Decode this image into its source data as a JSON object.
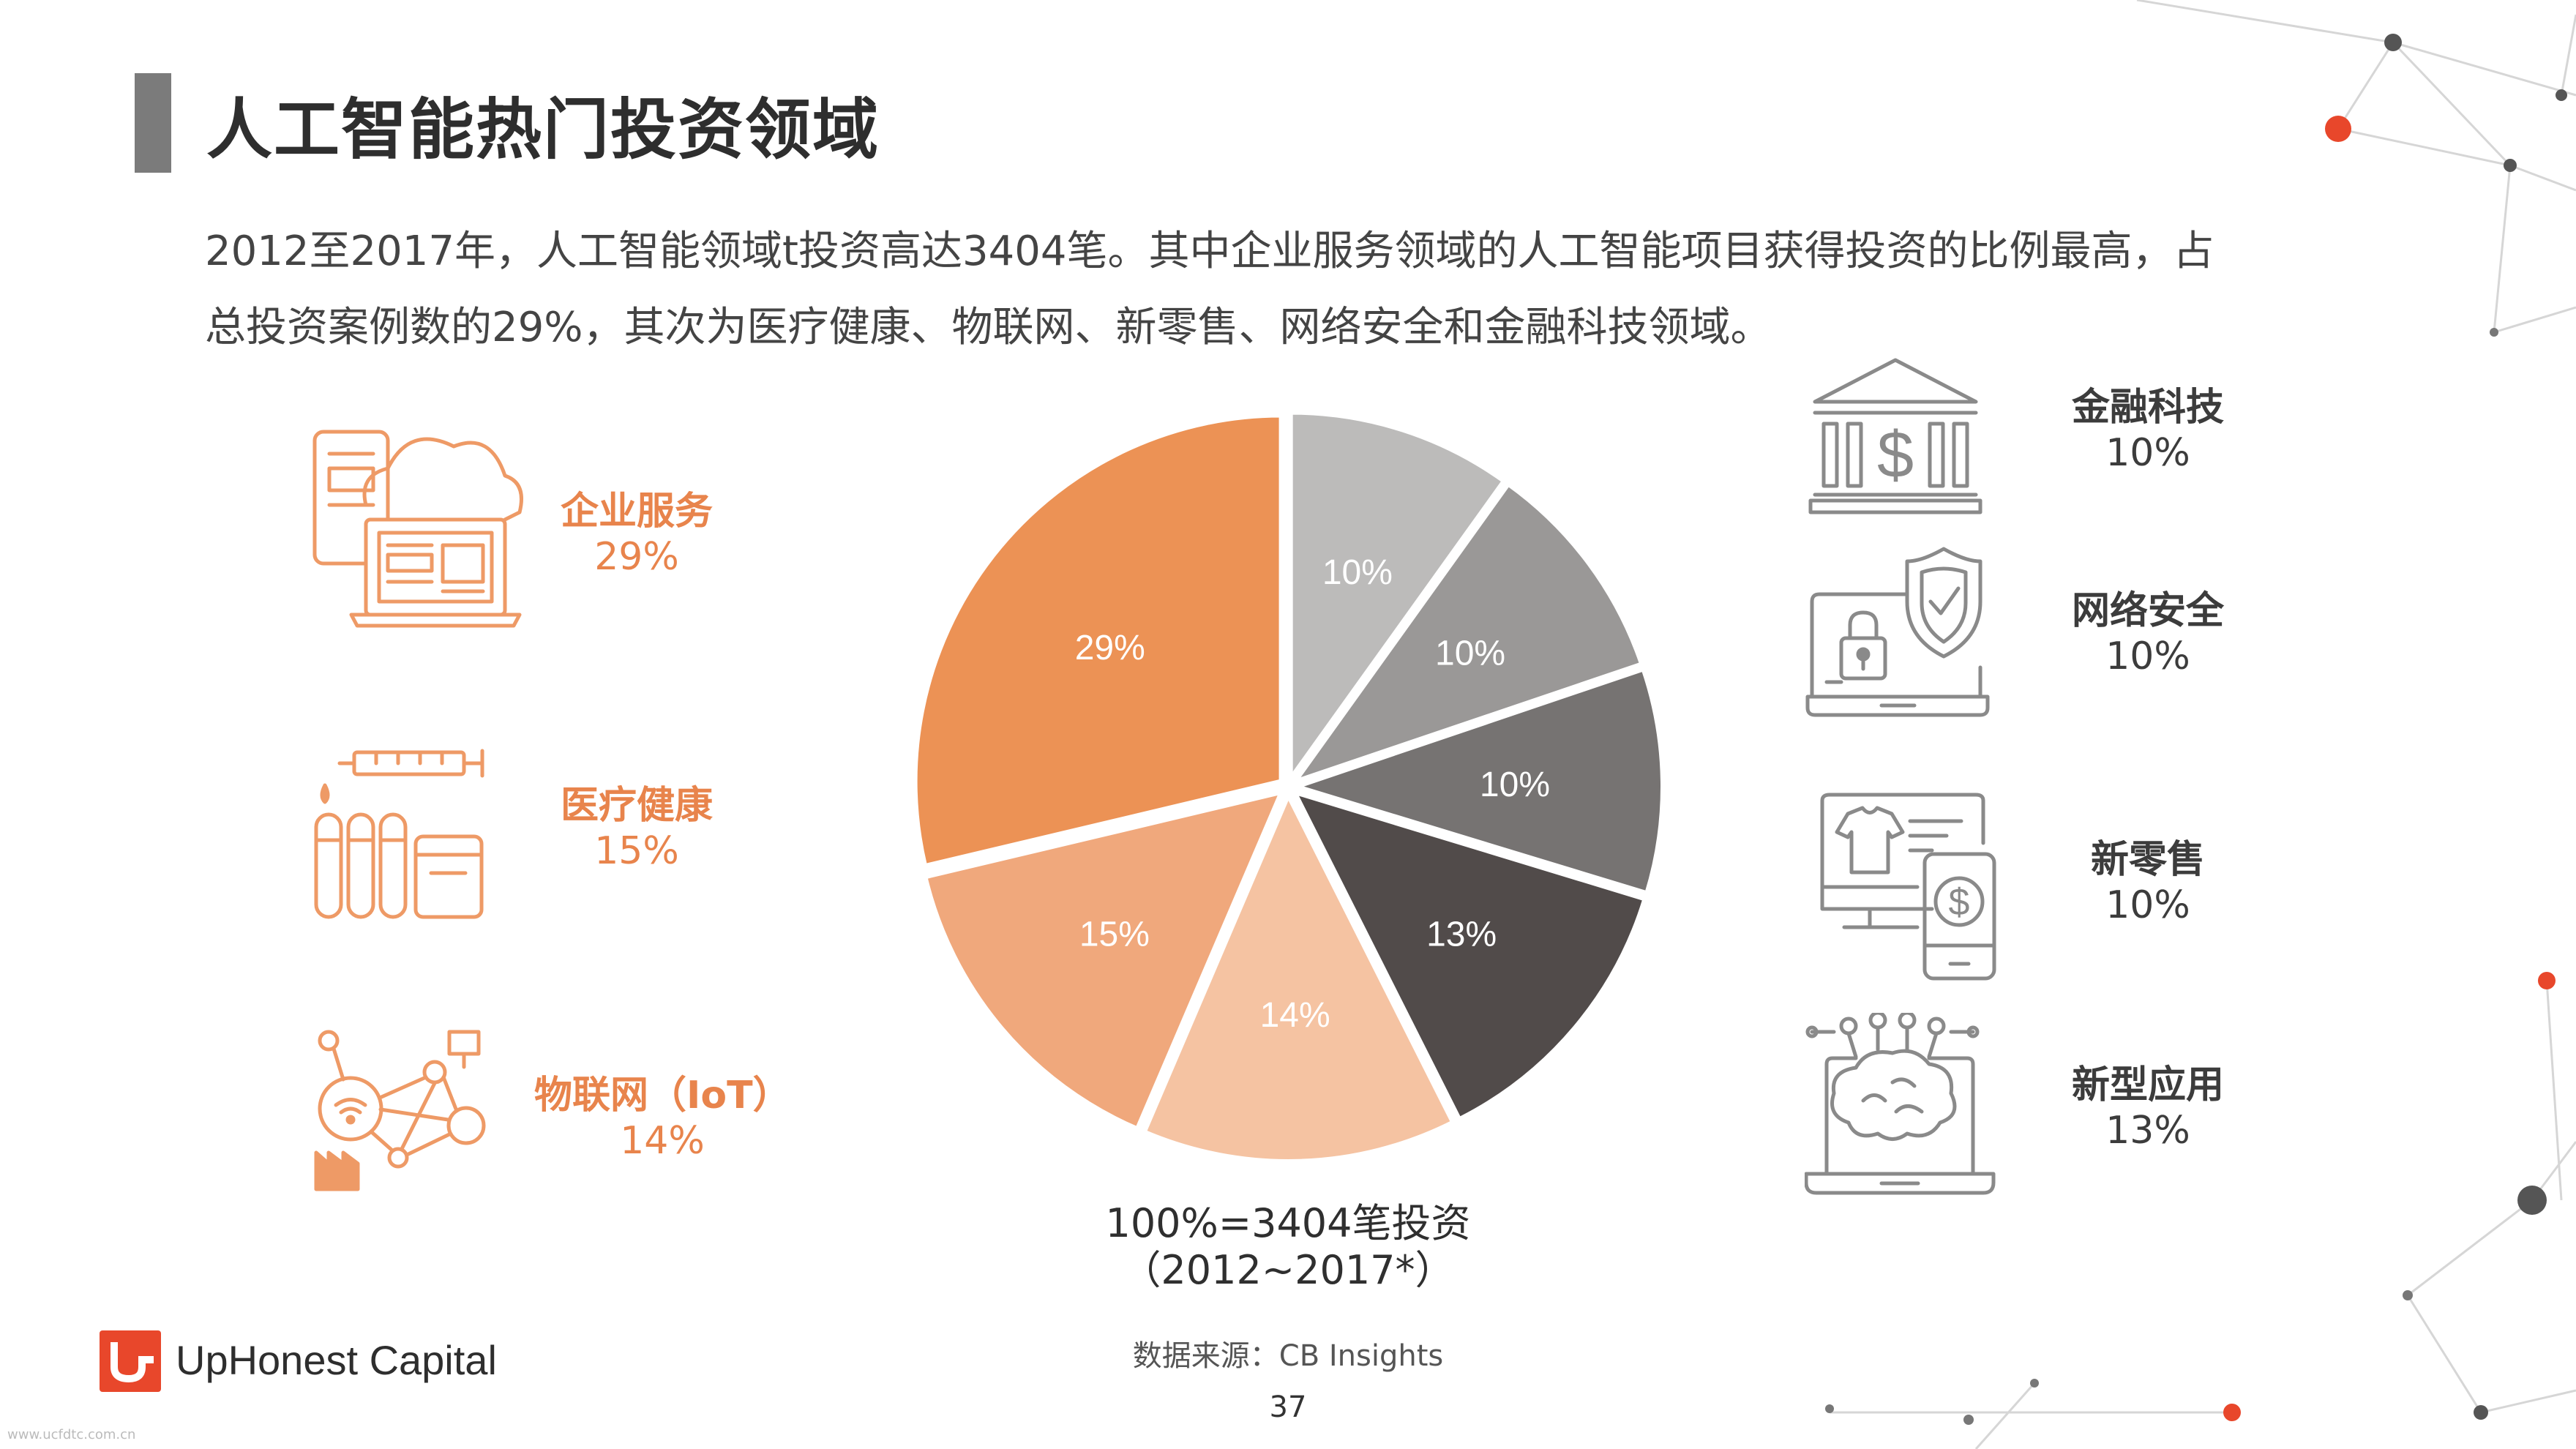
{
  "page": {
    "title": "人工智能热门投资领域",
    "intro_line1": "2012至2017年，人工智能领域t投资高达3404笔。其中企业服务领域的人工智能项目获得投资的比例最高，占",
    "intro_line2": "总投资案例数的29%，其次为医疗健康、物联网、新零售、网络安全和金融科技领域。",
    "pie_caption_line1": "100%=3404笔投资",
    "pie_caption_line2": "（2012~2017*）",
    "source": "数据来源：CB Insights",
    "page_number": "37",
    "logo_text": "UpHonest Capital",
    "watermark": "www.ucfdtc.com.cn"
  },
  "left_legend": [
    {
      "name": "企业服务",
      "pct": "29%",
      "icon": "cloud-laptop-icon"
    },
    {
      "name": "医疗健康",
      "pct": "15%",
      "icon": "syringe-test-tubes-icon"
    },
    {
      "name": "物联网（IoT）",
      "pct": "14%",
      "icon": "iot-network-icon"
    }
  ],
  "right_legend": [
    {
      "name": "金融科技",
      "pct": "10%",
      "icon": "bank-dollar-icon"
    },
    {
      "name": "网络安全",
      "pct": "10%",
      "icon": "shield-lock-laptop-icon"
    },
    {
      "name": "新零售",
      "pct": "10%",
      "icon": "retail-shirt-phone-icon"
    },
    {
      "name": "新型应用",
      "pct": "13%",
      "icon": "brain-laptop-icon"
    }
  ],
  "colors": {
    "accent_orange": "#e8844c",
    "accent_red": "#e8472b",
    "title_bar": "#7b7b7b",
    "icon_orange": "#ee9a66",
    "icon_gray": "#8a8a8a"
  },
  "chart_data": {
    "type": "pie",
    "title": "",
    "start_angle_deg": 0,
    "direction": "clockwise",
    "slices": [
      {
        "label": "金融科技",
        "value": 10,
        "text": "10%",
        "color": "#bcbbba"
      },
      {
        "label": "网络安全",
        "value": 10,
        "text": "10%",
        "color": "#9a9897"
      },
      {
        "label": "新零售",
        "value": 10,
        "text": "10%",
        "color": "#767372"
      },
      {
        "label": "新型应用",
        "value": 13,
        "text": "13%",
        "color": "#514b4a"
      },
      {
        "label": "物联网（IoT）",
        "value": 14,
        "text": "14%",
        "color": "#f5c3a2"
      },
      {
        "label": "医疗健康",
        "value": 15,
        "text": "15%",
        "color": "#f0a87c"
      },
      {
        "label": "企业服务",
        "value": 29,
        "text": "29%",
        "color": "#ec9255"
      }
    ]
  }
}
